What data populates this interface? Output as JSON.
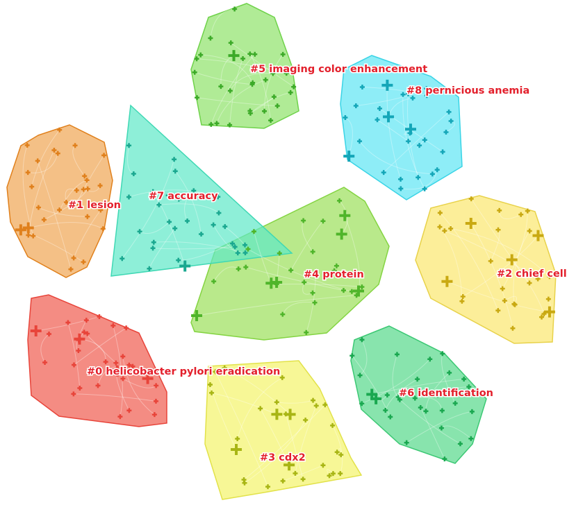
{
  "clusters": [
    {
      "label": "#0 helicobacter pylori eradication"
    },
    {
      "label": "#1 lesion"
    },
    {
      "label": "#2 chief cell"
    },
    {
      "label": "#3 cdx2"
    },
    {
      "label": "#4 protein"
    },
    {
      "label": "#5 imaging color enhancement"
    },
    {
      "label": "#6 identification"
    },
    {
      "label": "#7 accuracy"
    },
    {
      "label": "#8 pernicious anemia"
    }
  ]
}
